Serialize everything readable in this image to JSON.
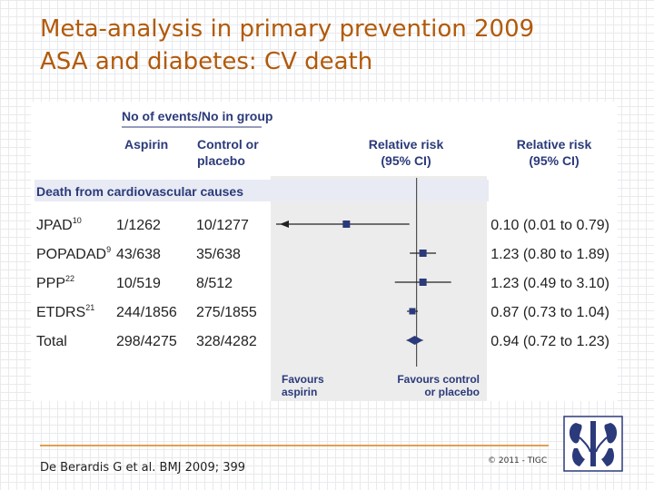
{
  "slide": {
    "title_line1": "Meta-analysis in primary prevention 2009",
    "title_line2": "ASA and diabetes: CV death",
    "citation": "De Berardis G et al. BMJ 2009; 399",
    "copyright": "© 2011 - TIGC",
    "logo_icon": "kidney-organs-logo-icon"
  },
  "chart_data": {
    "type": "forest",
    "header_group": "No of events/No in group",
    "col_aspirin": [
      "Aspirin"
    ],
    "col_control": [
      "Control or",
      "placebo"
    ],
    "col_rr": [
      "Relative risk",
      "(95% CI)"
    ],
    "col_rr_text": [
      "Relative risk",
      "(95% CI)"
    ],
    "section_label": "Death from cardiovascular causes",
    "favours_left": [
      "Favours",
      "aspirin"
    ],
    "favours_right": [
      "Favours control",
      "or placebo"
    ],
    "null_value": 1,
    "colors": {
      "marker": "#2b3a7a",
      "header": "#2b3a7a",
      "section_band": "#e8ebf4",
      "plot_band": "#ececec"
    },
    "rows": [
      {
        "study": "JPAD",
        "ref": "10",
        "aspirin": "1/1262",
        "control": "10/1277",
        "rr": 0.1,
        "lo": 0.01,
        "hi": 0.79,
        "label": "0.10 (0.01 to 0.79)",
        "pooled": false
      },
      {
        "study": "POPADAD",
        "ref": "9",
        "aspirin": "43/638",
        "control": "35/638",
        "rr": 1.23,
        "lo": 0.8,
        "hi": 1.89,
        "label": "1.23 (0.80 to 1.89)",
        "pooled": false
      },
      {
        "study": "PPP",
        "ref": "22",
        "aspirin": "10/519",
        "control": "8/512",
        "rr": 1.23,
        "lo": 0.49,
        "hi": 3.1,
        "label": "1.23 (0.49 to 3.10)",
        "pooled": false
      },
      {
        "study": "ETDRS",
        "ref": "21",
        "aspirin": "244/1856",
        "control": "275/1855",
        "rr": 0.87,
        "lo": 0.73,
        "hi": 1.04,
        "label": "0.87 (0.73 to 1.04)",
        "pooled": false
      },
      {
        "study": "Total",
        "ref": "",
        "aspirin": "298/4275",
        "control": "328/4282",
        "rr": 0.94,
        "lo": 0.72,
        "hi": 1.23,
        "label": "0.94 (0.72 to 1.23)",
        "pooled": true
      }
    ]
  }
}
